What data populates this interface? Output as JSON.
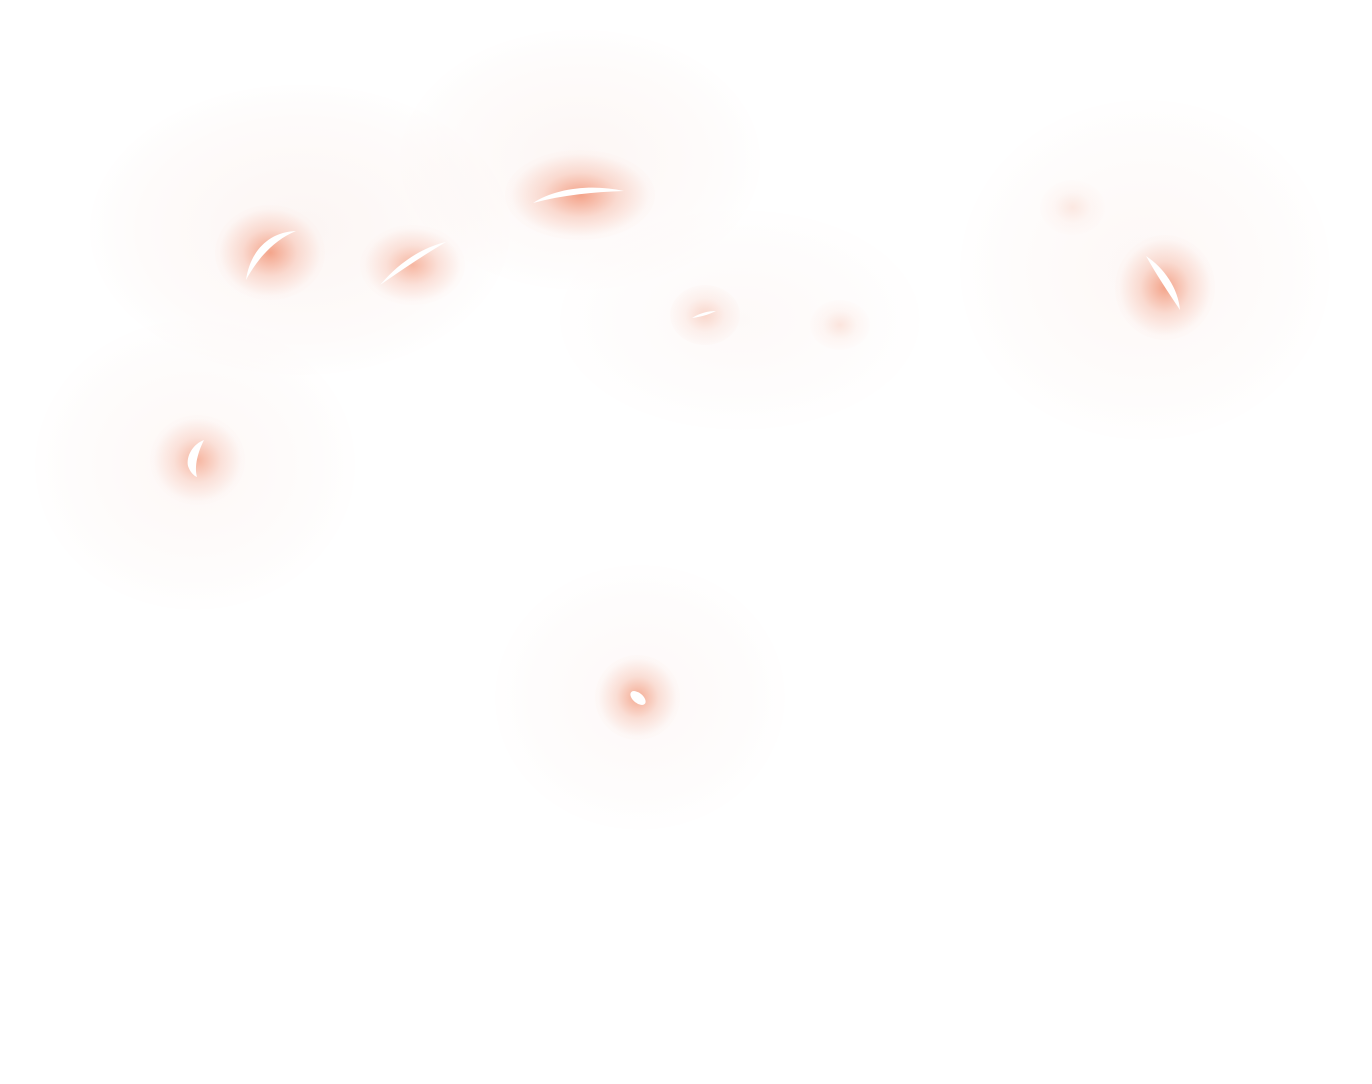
{
  "scene": {
    "description_free": true,
    "colors": {
      "background": "#ffffff",
      "haze": "#fdf9f8",
      "glow_core": "#f4a68c",
      "highlight": "#ffffff"
    },
    "spot_count": 10
  }
}
